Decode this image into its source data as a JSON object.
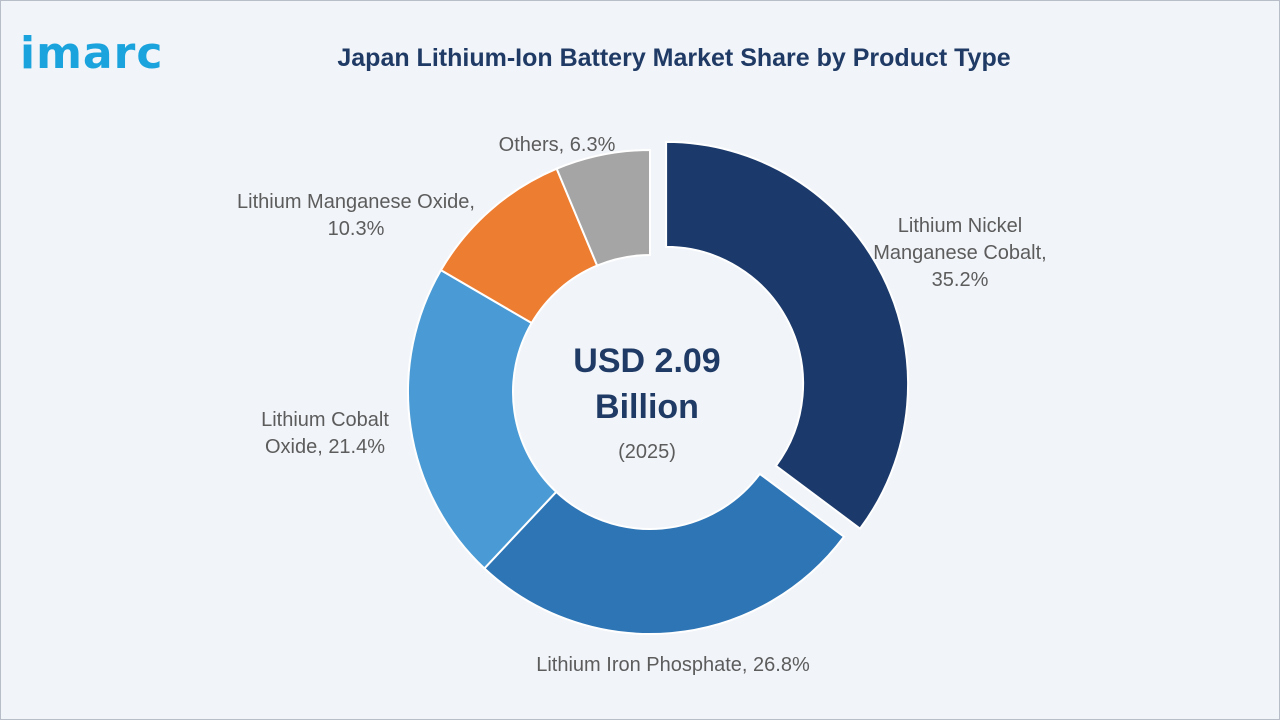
{
  "brand": {
    "logo_text": "imarc",
    "logo_color": "#1aa3dd"
  },
  "chart_data": {
    "type": "pie",
    "title": "Japan Lithium-Ion Battery Market Share by Product Type",
    "donut": true,
    "center_value": "USD 2.09",
    "center_unit": "Billion",
    "center_year": "(2025)",
    "slices": [
      {
        "name": "Lithium Nickel Manganese Cobalt",
        "value": 35.2,
        "label_lines": [
          "Lithium Nickel",
          "Manganese Cobalt,",
          "35.2%"
        ],
        "color": "#1b3a6b",
        "exploded": true
      },
      {
        "name": "Lithium Iron Phosphate",
        "value": 26.8,
        "label_lines": [
          "Lithium Iron Phosphate, 26.8%"
        ],
        "color": "#2e75b6",
        "exploded": false
      },
      {
        "name": "Lithium Cobalt Oxide",
        "value": 21.4,
        "label_lines": [
          "Lithium Cobalt",
          "Oxide, 21.4%"
        ],
        "color": "#4a9bd5",
        "exploded": false
      },
      {
        "name": "Lithium Manganese Oxide",
        "value": 10.3,
        "label_lines": [
          "Lithium Manganese Oxide,",
          "10.3%"
        ],
        "color": "#ed7d31",
        "exploded": false
      },
      {
        "name": "Others",
        "value": 6.3,
        "label_lines": [
          "Others, 6.3%"
        ],
        "color": "#a5a5a5",
        "exploded": false
      }
    ]
  }
}
